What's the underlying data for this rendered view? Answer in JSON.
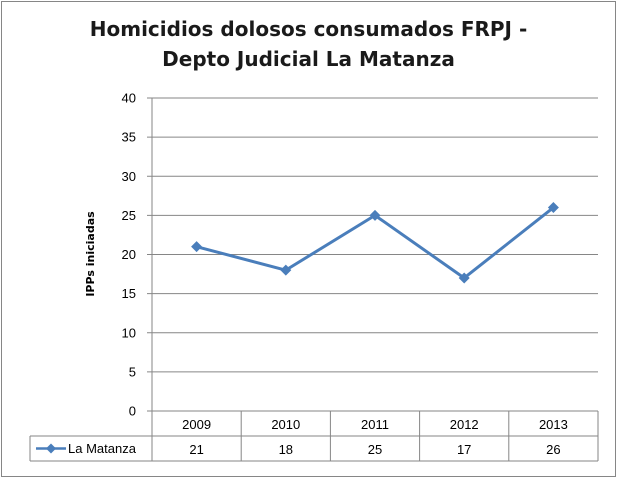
{
  "chart_data": {
    "type": "line",
    "title_lines": [
      "Homicidios dolosos consumados FRPJ -",
      "Depto Judicial La Matanza"
    ],
    "ylabel": "IPPs iniciadas",
    "xlabel": "",
    "categories": [
      "2009",
      "2010",
      "2011",
      "2012",
      "2013"
    ],
    "series": [
      {
        "name": "La Matanza",
        "values": [
          21,
          18,
          25,
          17,
          26
        ],
        "color": "#4a7ebb"
      }
    ],
    "ylim": [
      0,
      40
    ],
    "yticks": [
      "0",
      "5",
      "10",
      "15",
      "20",
      "25",
      "30",
      "35",
      "40"
    ],
    "grid": true,
    "legend": "data-table",
    "data_table": true
  }
}
